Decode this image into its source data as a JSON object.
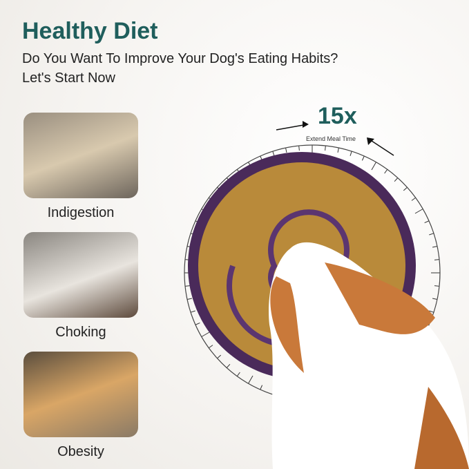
{
  "header": {
    "title": "Healthy Diet",
    "subtitle_line1": "Do You Want To Improve Your Dog's Eating Habits?",
    "subtitle_line2": "Let's Start Now"
  },
  "problems": [
    {
      "label": "Indigestion"
    },
    {
      "label": "Choking"
    },
    {
      "label": "Obesity"
    }
  ],
  "dial": {
    "multiplier": "15x",
    "caption": "Extend Meal Time"
  },
  "colors": {
    "accent": "#1f5e5c",
    "bowl": "#4a2a5a",
    "kibble": "#b98a3a"
  }
}
